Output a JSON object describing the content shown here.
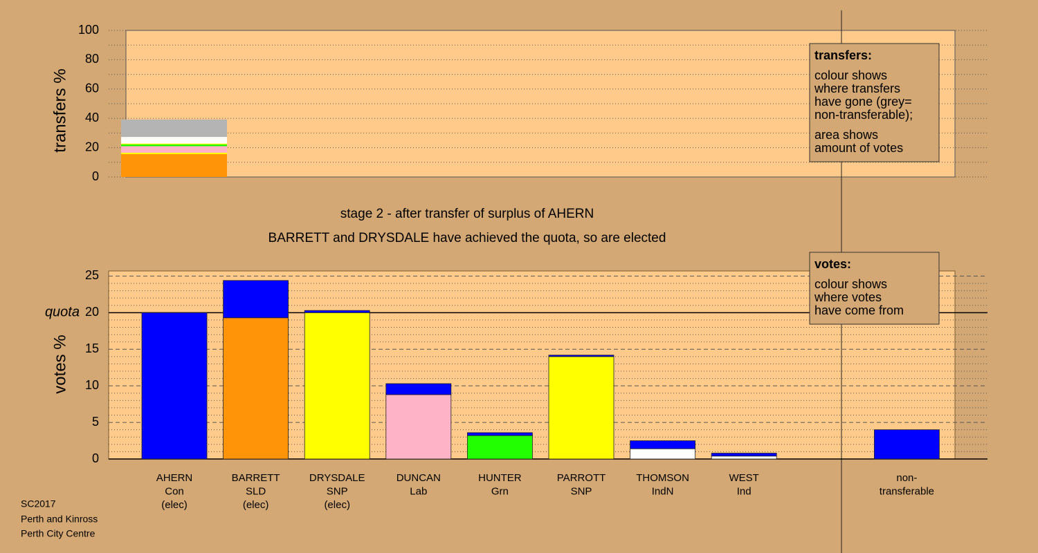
{
  "chart_data": [
    {
      "type": "stacked-bar",
      "y_label": "transfers %",
      "ylim": [
        0,
        100
      ],
      "yticks": [
        0,
        20,
        40,
        60,
        80,
        100
      ],
      "minor_yticks": [
        10,
        30,
        50,
        70,
        90
      ],
      "segments": [
        [
          {
            "color": "#ff9408",
            "value": 15.6
          },
          {
            "color": "#ffff00",
            "value": 0.9
          },
          {
            "color": "#ffb3c6",
            "value": 4.5
          },
          {
            "color": "#22ff00",
            "value": 1.2
          },
          {
            "color": "#ffff00",
            "value": 0.6
          },
          {
            "color": "#ffffff",
            "value": 3.3
          },
          {
            "color": "#ffffff",
            "value": 1.2
          },
          {
            "color": "#b4b4b4",
            "value": 11.9
          }
        ]
      ],
      "legend": {
        "title": "transfers:",
        "paragraphs": [
          [
            "colour shows",
            "where transfers",
            "have gone (grey=",
            "non-transferable);"
          ],
          [
            "area shows",
            "amount of votes"
          ]
        ]
      }
    },
    {
      "type": "stacked-bar",
      "y_label": "votes %",
      "ylim": [
        0,
        25.7
      ],
      "yticks": [
        0,
        5,
        10,
        15,
        20,
        25
      ],
      "minor_yticks": [
        1,
        2,
        3,
        4,
        6,
        7,
        8,
        9,
        11,
        12,
        13,
        14,
        16,
        17,
        18,
        19,
        21,
        22,
        23,
        24
      ],
      "quota": {
        "label": "quota",
        "value": 20
      },
      "categories": [
        [
          "AHERN",
          "Con",
          "(elec)"
        ],
        [
          "BARRETT",
          "SLD",
          "(elec)"
        ],
        [
          "DRYSDALE",
          "SNP",
          "(elec)"
        ],
        [
          "DUNCAN",
          "Lab"
        ],
        [
          "HUNTER",
          "Grn"
        ],
        [
          "PARROTT",
          "SNP"
        ],
        [
          "THOMSON",
          "IndN"
        ],
        [
          "WEST",
          "Ind"
        ],
        [
          "non-",
          "transferable"
        ]
      ],
      "segments": [
        [
          {
            "color": "#0000ff",
            "value": 20
          }
        ],
        [
          {
            "color": "#ff9408",
            "value": 19.3
          },
          {
            "color": "#0000ff",
            "value": 5.1
          }
        ],
        [
          {
            "color": "#ffff00",
            "value": 20
          },
          {
            "color": "#0000ff",
            "value": 0.3
          }
        ],
        [
          {
            "color": "#ffb3c6",
            "value": 8.8
          },
          {
            "color": "#0000ff",
            "value": 1.5
          }
        ],
        [
          {
            "color": "#22ff00",
            "value": 3.2
          },
          {
            "color": "#0000ff",
            "value": 0.4
          }
        ],
        [
          {
            "color": "#ffff00",
            "value": 14.0
          },
          {
            "color": "#0000ff",
            "value": 0.2
          }
        ],
        [
          {
            "color": "#ffffff",
            "value": 1.4
          },
          {
            "color": "#0000ff",
            "value": 1.1
          }
        ],
        [
          {
            "color": "#ffffff",
            "value": 0.4
          },
          {
            "color": "#0000ff",
            "value": 0.4
          }
        ],
        [
          {
            "color": "#0000ff",
            "value": 4.0
          }
        ]
      ],
      "legend": {
        "title": "votes:",
        "paragraphs": [
          [
            "colour shows",
            "where votes",
            "have come from"
          ]
        ]
      }
    }
  ],
  "captions": [
    "stage 2 - after transfer of surplus of AHERN",
    "BARRETT and DRYSDALE have achieved the quota, so are elected"
  ],
  "footer": [
    "SC2017",
    "Perth and Kinross",
    "Perth City Centre"
  ]
}
